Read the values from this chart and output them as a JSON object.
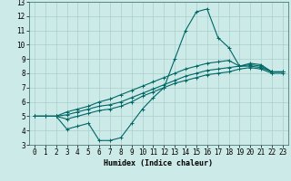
{
  "xlabel": "Humidex (Indice chaleur)",
  "xlim": [
    -0.5,
    23.5
  ],
  "ylim": [
    3,
    13
  ],
  "xticks": [
    0,
    1,
    2,
    3,
    4,
    5,
    6,
    7,
    8,
    9,
    10,
    11,
    12,
    13,
    14,
    15,
    16,
    17,
    18,
    19,
    20,
    21,
    22,
    23
  ],
  "yticks": [
    3,
    4,
    5,
    6,
    7,
    8,
    9,
    10,
    11,
    12,
    13
  ],
  "bg_color": "#cceae7",
  "grid_color": "#aacfcb",
  "line_color": "#006666",
  "series": [
    [
      5.0,
      5.0,
      5.0,
      4.1,
      4.3,
      4.5,
      3.3,
      3.3,
      3.5,
      4.5,
      5.5,
      6.3,
      7.0,
      9.0,
      11.0,
      12.3,
      12.5,
      10.5,
      9.8,
      8.5,
      8.7,
      8.6,
      8.1,
      8.1
    ],
    [
      5.0,
      5.0,
      5.0,
      4.8,
      5.0,
      5.2,
      5.4,
      5.5,
      5.7,
      6.0,
      6.4,
      6.7,
      7.0,
      7.3,
      7.5,
      7.7,
      7.9,
      8.0,
      8.1,
      8.3,
      8.4,
      8.3,
      8.0,
      8.0
    ],
    [
      5.0,
      5.0,
      5.0,
      5.1,
      5.3,
      5.5,
      5.7,
      5.8,
      6.0,
      6.3,
      6.6,
      6.9,
      7.2,
      7.5,
      7.8,
      8.0,
      8.2,
      8.3,
      8.4,
      8.5,
      8.6,
      8.5,
      8.1,
      8.1
    ],
    [
      5.0,
      5.0,
      5.0,
      5.3,
      5.5,
      5.7,
      6.0,
      6.2,
      6.5,
      6.8,
      7.1,
      7.4,
      7.7,
      8.0,
      8.3,
      8.5,
      8.7,
      8.8,
      8.9,
      8.5,
      8.5,
      8.4,
      8.1,
      8.1
    ]
  ]
}
